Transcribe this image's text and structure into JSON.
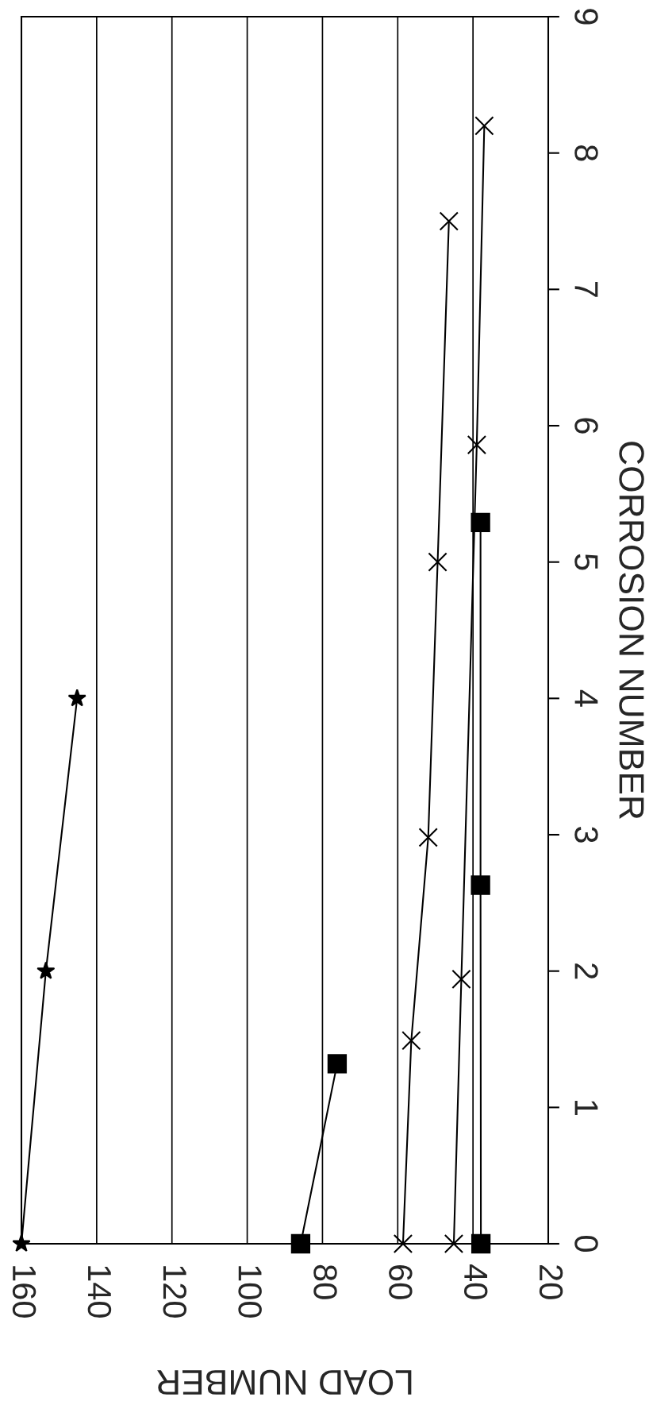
{
  "chart_data": {
    "type": "line",
    "xlabel": "LOAD NUMBER",
    "ylabel": "CORROSION NUMBER",
    "xlim": [
      160,
      20
    ],
    "xticks": [
      160,
      140,
      120,
      100,
      80,
      60,
      40,
      20
    ],
    "ylim": [
      0,
      9
    ],
    "yticks": [
      0,
      1,
      2,
      3,
      4,
      5,
      6,
      7,
      8,
      9
    ],
    "grid": "x",
    "legend": false,
    "series": [
      {
        "color": "#000000",
        "marker": "star",
        "x": [
          160,
          153.5,
          145.2
        ],
        "values": [
          0,
          2,
          4
        ]
      },
      {
        "color": "#000000",
        "marker": "square",
        "x": [
          85.8,
          76.1
        ],
        "values": [
          0,
          1.32
        ]
      },
      {
        "color": "#000000",
        "marker": "cross",
        "x": [
          58.6,
          56.4,
          51.9,
          49.4,
          46.4
        ],
        "values": [
          0,
          1.49,
          2.98,
          5.0,
          7.5
        ]
      },
      {
        "color": "#000000",
        "marker": "cross",
        "x": [
          45.1,
          43.1,
          39.0,
          37.0
        ],
        "values": [
          0,
          1.94,
          5.86,
          8.2
        ]
      },
      {
        "color": "#000000",
        "marker": "square",
        "x": [
          37.9,
          38.0,
          38.0
        ],
        "values": [
          0,
          2.63,
          5.29
        ]
      }
    ]
  }
}
